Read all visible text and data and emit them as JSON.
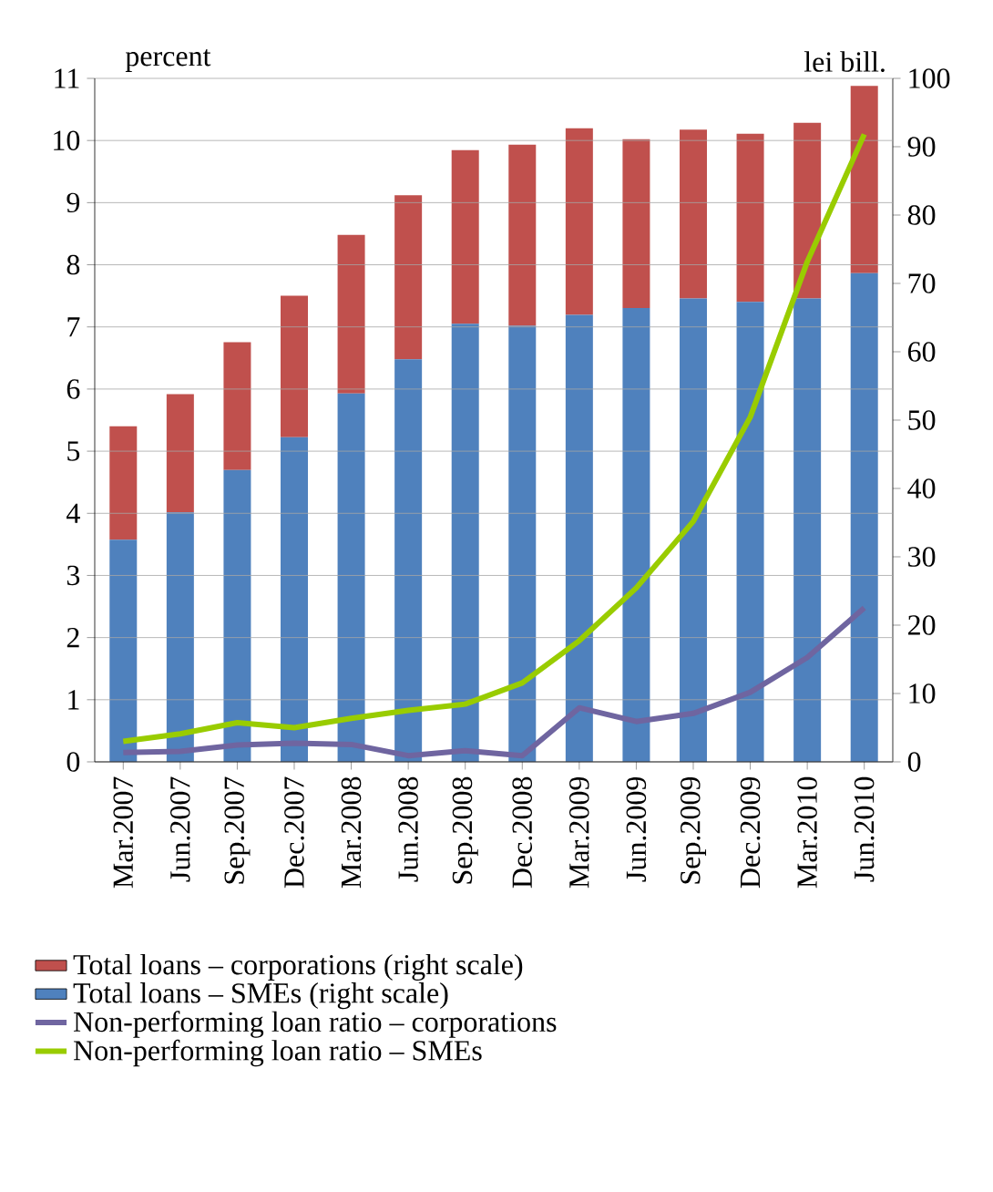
{
  "chart_data": {
    "type": "bar",
    "stacked": true,
    "ylabel": "percent",
    "y2label": "lei bill.",
    "categories": [
      "Mar.2007",
      "Jun.2007",
      "Sep.2007",
      "Dec.2007",
      "Mar.2008",
      "Jun.2008",
      "Sep.2008",
      "Dec.2008",
      "Mar.2009",
      "Jun.2009",
      "Sep.2009",
      "Dec.2009",
      "Mar.2010",
      "Jun.2010"
    ],
    "series": [
      {
        "name": "Total loans – SMEs (right scale)",
        "axis": "y2",
        "color": "#4f81bd",
        "values": [
          32.5,
          36.5,
          42.7,
          47.5,
          53.9,
          58.9,
          64.1,
          63.8,
          65.4,
          66.4,
          67.8,
          67.3,
          67.8,
          71.5
        ]
      },
      {
        "name": "Total loans – corporations (right scale)",
        "axis": "y2",
        "color": "#c0504d",
        "values": [
          16.6,
          17.3,
          18.7,
          20.7,
          23.2,
          24.0,
          25.4,
          26.5,
          27.3,
          24.7,
          24.7,
          24.6,
          25.7,
          27.4
        ]
      },
      {
        "name": "Non-performing loan ratio – corporations",
        "type": "line",
        "color": "#6f65a0",
        "values": [
          0.15,
          0.17,
          0.27,
          0.3,
          0.28,
          0.1,
          0.18,
          0.1,
          0.87,
          0.65,
          0.78,
          1.12,
          1.68,
          2.48
        ]
      },
      {
        "name": "Non-performing loan ratio – SMEs",
        "type": "line",
        "color": "#99cc00",
        "values": [
          0.33,
          0.45,
          0.63,
          0.55,
          0.7,
          0.83,
          0.93,
          1.27,
          1.95,
          2.8,
          3.87,
          5.55,
          8.05,
          10.1
        ]
      }
    ],
    "ylim": [
      0,
      11
    ],
    "yticks": [
      0,
      1,
      2,
      3,
      4,
      5,
      6,
      7,
      8,
      9,
      10,
      11
    ],
    "y2lim": [
      0,
      100
    ],
    "y2ticks": [
      0,
      10,
      20,
      30,
      40,
      50,
      60,
      70,
      80,
      90,
      100
    ],
    "grid": "y",
    "legend": "bottom"
  }
}
